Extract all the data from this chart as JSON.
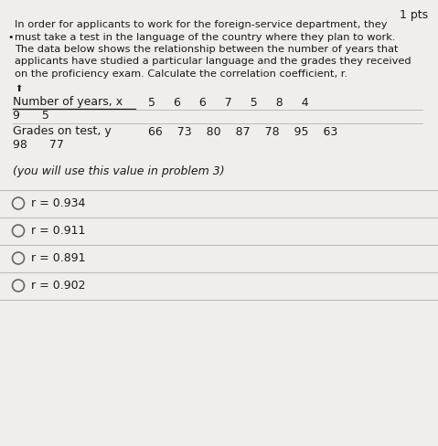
{
  "pts_label": "1 pts",
  "para_line1": "In order for applicants to work for the foreign-service department, they",
  "para_line2": "must take a test in the language of the country where they plan to work.",
  "para_line3": "The data below shows the relationship between the number of years that",
  "para_line4": "applicants have studied a particular language and the grades they received",
  "para_line5": "on the proficiency exam. Calculate the correlation coefficient, r.",
  "row1_label": "Number of years, x",
  "row1_values": "5     6     6     7     5     8     4",
  "row1_cont": "9      5",
  "row2_label": "Grades on test, y",
  "row2_values": "66    73    80    87    78    95    63",
  "row2_cont": "98      77",
  "note": "(you will use this value in problem 3)",
  "options": [
    "r = 0.934",
    "r = 0.911",
    "r = 0.891",
    "r = 0.902"
  ],
  "bg_color": "#f0eeeb",
  "text_color": "#1a1a1a",
  "line_color": "#bbbbbb",
  "radio_color": "#666666"
}
